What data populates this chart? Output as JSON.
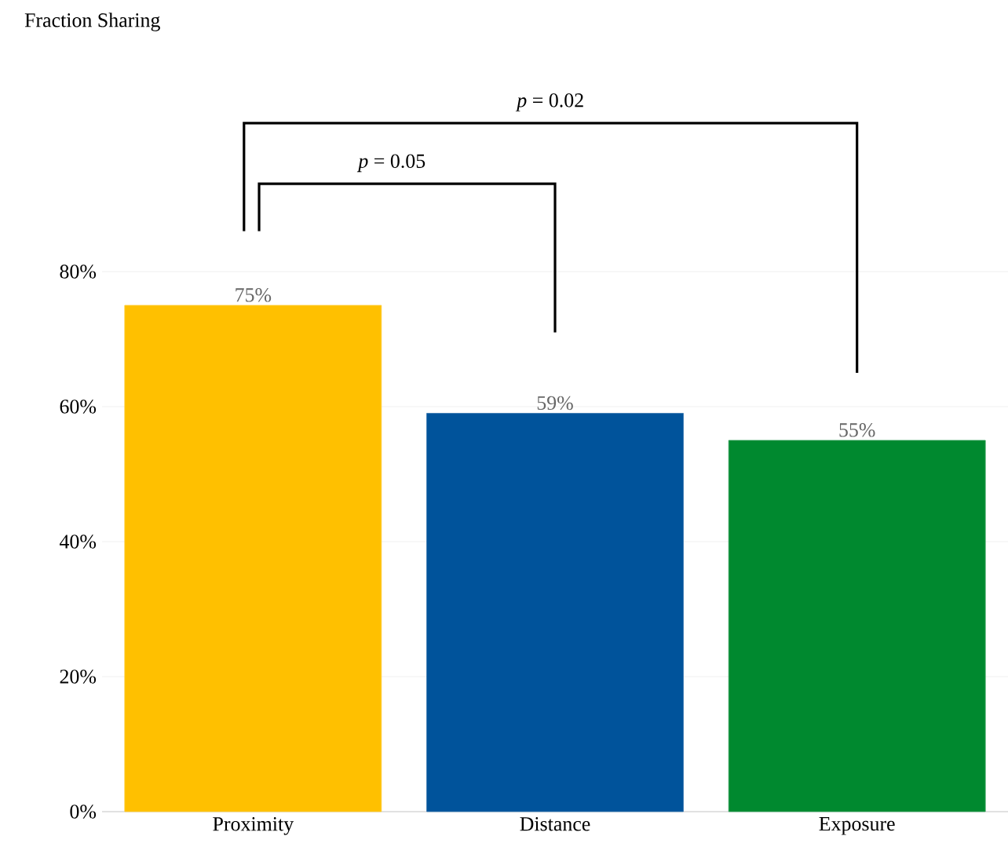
{
  "chart_data": {
    "type": "bar",
    "title": "Fraction Sharing",
    "categories": [
      "Proximity",
      "Distance",
      "Exposure"
    ],
    "values": [
      75,
      59,
      55
    ],
    "colors": [
      "#ffc000",
      "#00539b",
      "#00892f"
    ],
    "value_labels": [
      "75%",
      "59%",
      "55%"
    ],
    "ylim": [
      0,
      80
    ],
    "yticks": [
      {
        "value": 0,
        "label": "0%"
      },
      {
        "value": 20,
        "label": "20%"
      },
      {
        "value": 40,
        "label": "40%"
      },
      {
        "value": 60,
        "label": "60%"
      },
      {
        "value": 80,
        "label": "80%"
      }
    ],
    "grid": "y",
    "annotations": [
      "*p* = 0.05",
      "*p* = 0.02"
    ]
  }
}
